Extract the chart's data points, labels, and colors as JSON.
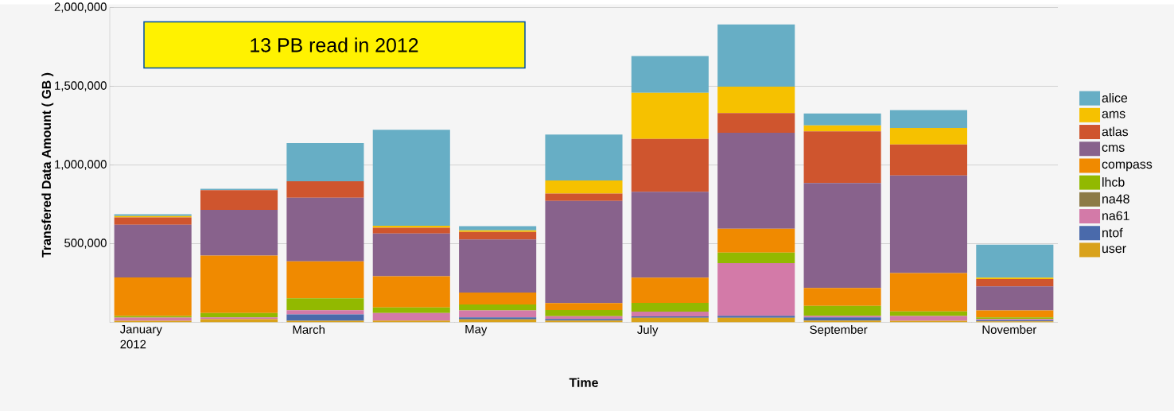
{
  "chart_data": {
    "type": "bar",
    "stacked": true,
    "categories": [
      "January 2012",
      null,
      "March",
      null,
      "May",
      null,
      "July",
      null,
      "September",
      null,
      "November"
    ],
    "xlabel": "Time",
    "ylabel": "Transfered Data Amount ( GB )",
    "annotations": [
      "13 PB read in 2012"
    ],
    "ylim": [
      0,
      2000000
    ],
    "yticks": [
      {
        "value": 500000,
        "label": "500,000"
      },
      {
        "value": 1000000,
        "label": "1,000,000"
      },
      {
        "value": 1500000,
        "label": "1,500,000"
      },
      {
        "value": 2000000,
        "label": "2,000,000"
      }
    ],
    "grid": "y",
    "legend": "right",
    "series": [
      {
        "name": "user",
        "color": "#d9a21b",
        "values": [
          10000,
          20000,
          10000,
          11000,
          19000,
          11000,
          29000,
          29000,
          11000,
          10000,
          6000
        ]
      },
      {
        "name": "ntof",
        "color": "#4a6aab",
        "values": [
          0,
          0,
          40000,
          0,
          12000,
          10000,
          9000,
          12000,
          20000,
          0,
          8000
        ]
      },
      {
        "name": "na61",
        "color": "#d37aa8",
        "values": [
          20000,
          12000,
          27000,
          48000,
          45000,
          18000,
          30000,
          335000,
          10000,
          30000,
          7000
        ]
      },
      {
        "name": "na48",
        "color": "#8c7a46",
        "values": [
          0,
          0,
          0,
          0,
          0,
          0,
          0,
          0,
          0,
          0,
          0
        ]
      },
      {
        "name": "lhcb",
        "color": "#92b900",
        "values": [
          10000,
          27000,
          76000,
          35000,
          37000,
          39000,
          56000,
          67000,
          64000,
          29000,
          10000
        ]
      },
      {
        "name": "compass",
        "color": "#f08a00",
        "values": [
          245000,
          365000,
          234000,
          199000,
          76000,
          45000,
          160000,
          152000,
          113000,
          244000,
          45000
        ]
      },
      {
        "name": "cms",
        "color": "#88628c",
        "values": [
          335000,
          291000,
          405000,
          271000,
          337000,
          648000,
          545000,
          610000,
          667000,
          620000,
          152000
        ]
      },
      {
        "name": "atlas",
        "color": "#cf552e",
        "values": [
          47000,
          125000,
          105000,
          37000,
          48000,
          47000,
          336000,
          125000,
          328000,
          197000,
          47000
        ]
      },
      {
        "name": "ams",
        "color": "#f6c100",
        "values": [
          8000,
          0,
          0,
          12000,
          10000,
          84000,
          293000,
          167000,
          38000,
          105000,
          9000
        ]
      },
      {
        "name": "alice",
        "color": "#67aec5",
        "values": [
          12000,
          8000,
          242000,
          610000,
          27000,
          291000,
          234000,
          395000,
          76000,
          113000,
          209000
        ]
      }
    ]
  }
}
